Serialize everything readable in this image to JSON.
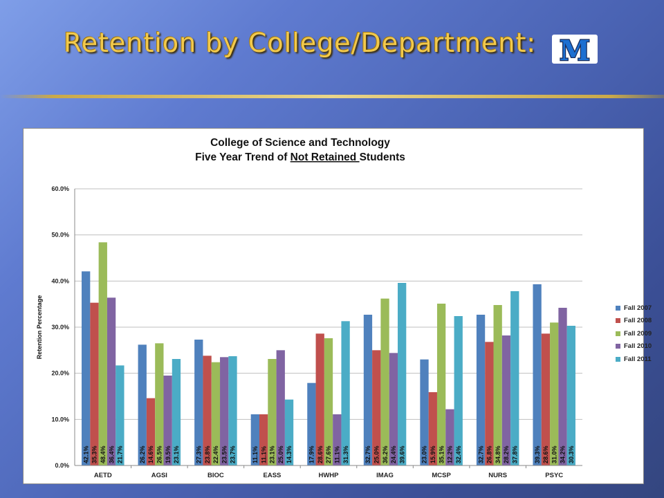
{
  "slide": {
    "title": "Retention by College/Department:",
    "logo_letter": "M"
  },
  "colors": {
    "title_gold": "#f2c94c",
    "logo_navy": "#1a2d5c",
    "logo_blue": "#1c6fd1"
  },
  "chart_data": {
    "type": "bar",
    "title_lines": [
      "College of Science and Technology",
      "Five Year Trend of "
    ],
    "title_underlined": "Not Retained ",
    "title_suffix": "Students",
    "ylabel": "Retention Percentage",
    "xlabel": "",
    "ylim": [
      0,
      60
    ],
    "yticks": [
      "0.0%",
      "10.0%",
      "20.0%",
      "30.0%",
      "40.0%",
      "50.0%",
      "60.0%"
    ],
    "grid": true,
    "legend_position": "right",
    "categories": [
      "AETD",
      "AGSI",
      "BIOC",
      "EASS",
      "HWHP",
      "IMAG",
      "MCSP",
      "NURS",
      "PSYC"
    ],
    "series": [
      {
        "name": "Fall 2007",
        "color": "#4f81bd",
        "values": [
          42.1,
          26.2,
          27.3,
          11.1,
          17.9,
          32.7,
          23.0,
          32.7,
          39.3
        ],
        "labels": [
          "42.1%",
          "26.2%",
          "27.3%",
          "11.1%",
          "17.9%",
          "32.7%",
          "23.0%",
          "32.7%",
          "39.3%"
        ]
      },
      {
        "name": "Fall 2008",
        "color": "#c0504d",
        "values": [
          35.3,
          14.6,
          23.8,
          11.1,
          28.6,
          25.0,
          15.9,
          26.8,
          28.6
        ],
        "labels": [
          "35.3%",
          "14.6%",
          "23.8%",
          "11.1%",
          "28.6%",
          "25.0%",
          "15.9%",
          "26.8%",
          "28.6%"
        ]
      },
      {
        "name": "Fall 2009",
        "color": "#9bbb59",
        "values": [
          48.4,
          26.5,
          22.4,
          23.1,
          27.6,
          36.2,
          35.1,
          34.8,
          31.0
        ],
        "labels": [
          "48.4%",
          "26.5%",
          "22.4%",
          "23.1%",
          "27.6%",
          "36.2%",
          "35.1%",
          "34.8%",
          "31.0%"
        ]
      },
      {
        "name": "Fall 2010",
        "color": "#8064a2",
        "values": [
          36.4,
          19.5,
          23.5,
          25.0,
          11.1,
          24.4,
          12.2,
          28.2,
          34.2
        ],
        "labels": [
          "36.4%",
          "19.5%",
          "23.5%",
          "25.0%",
          "11.1%",
          "24.4%",
          "12.2%",
          "28.2%",
          "34.2%"
        ]
      },
      {
        "name": "Fall 2011",
        "color": "#4bacc6",
        "values": [
          21.7,
          23.1,
          23.7,
          14.3,
          31.3,
          39.6,
          32.4,
          37.8,
          30.3
        ],
        "labels": [
          "21.7%",
          "23.1%",
          "23.7%",
          "14.3%",
          "31.3%",
          "39.6%",
          "32.4%",
          "37.8%",
          "30.3%"
        ]
      }
    ]
  }
}
